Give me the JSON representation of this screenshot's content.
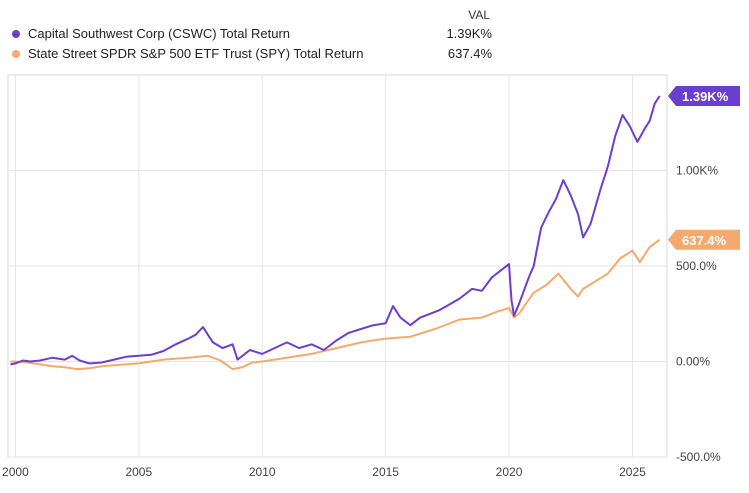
{
  "legend": {
    "header": "VAL",
    "items": [
      {
        "name": "Capital Southwest Corp (CSWC) Total Return",
        "value": "1.39K%",
        "color": "#6a3fd0"
      },
      {
        "name": "State Street SPDR S&P 500 ETF Trust (SPY) Total Return",
        "value": "637.4%",
        "color": "#f6a96e"
      }
    ]
  },
  "chart_data": {
    "type": "line",
    "xlim": [
      1999.7,
      2026.4
    ],
    "ylim": [
      -500,
      1500
    ],
    "grid": true,
    "x_ticks": [
      {
        "v": 2000,
        "label": "2000"
      },
      {
        "v": 2005,
        "label": "2005"
      },
      {
        "v": 2010,
        "label": "2010"
      },
      {
        "v": 2015,
        "label": "2015"
      },
      {
        "v": 2020,
        "label": "2020"
      },
      {
        "v": 2025,
        "label": "2025"
      }
    ],
    "y_ticks": [
      {
        "v": 1000,
        "label": "1.00K%"
      },
      {
        "v": 500,
        "label": "500.0%"
      },
      {
        "v": 0,
        "label": "0.00%"
      },
      {
        "v": -500,
        "label": "-500.0%"
      }
    ],
    "end_labels": [
      {
        "series": 0,
        "label": "1.39K%"
      },
      {
        "series": 1,
        "label": "637.4%"
      }
    ],
    "series": [
      {
        "name": "Capital Southwest Corp (CSWC) Total Return",
        "color": "#6a3fd0",
        "x": [
          1999.8,
          2000.0,
          2000.3,
          2000.6,
          2001.0,
          2001.5,
          2002.0,
          2002.3,
          2002.6,
          2003.0,
          2003.5,
          2004.0,
          2004.5,
          2005.0,
          2005.5,
          2006.0,
          2006.5,
          2007.0,
          2007.3,
          2007.6,
          2008.0,
          2008.4,
          2008.8,
          2009.0,
          2009.2,
          2009.5,
          2010.0,
          2010.5,
          2011.0,
          2011.5,
          2012.0,
          2012.5,
          2013.0,
          2013.5,
          2014.0,
          2014.5,
          2015.0,
          2015.3,
          2015.6,
          2016.0,
          2016.4,
          2016.8,
          2017.2,
          2017.6,
          2018.0,
          2018.5,
          2018.9,
          2019.3,
          2019.7,
          2020.0,
          2020.1,
          2020.2,
          2020.4,
          2020.8,
          2021.0,
          2021.3,
          2021.6,
          2021.9,
          2022.2,
          2022.5,
          2022.8,
          2023.0,
          2023.3,
          2023.7,
          2024.0,
          2024.3,
          2024.6,
          2024.9,
          2025.2,
          2025.5,
          2025.7,
          2025.9,
          2026.1
        ],
        "y": [
          -15,
          -10,
          5,
          0,
          5,
          20,
          10,
          30,
          5,
          -10,
          -5,
          10,
          25,
          30,
          35,
          55,
          90,
          120,
          140,
          180,
          100,
          70,
          90,
          10,
          30,
          60,
          40,
          70,
          100,
          70,
          90,
          60,
          110,
          150,
          170,
          190,
          200,
          290,
          230,
          190,
          230,
          250,
          270,
          300,
          330,
          380,
          370,
          440,
          480,
          510,
          320,
          240,
          300,
          440,
          500,
          700,
          780,
          850,
          950,
          870,
          770,
          650,
          720,
          900,
          1020,
          1180,
          1290,
          1230,
          1150,
          1220,
          1260,
          1350,
          1390
        ]
      },
      {
        "name": "State Street SPDR S&P 500 ETF Trust (SPY) Total Return",
        "color": "#f6a96e",
        "x": [
          1999.8,
          2000.0,
          2000.5,
          2001.0,
          2001.5,
          2002.0,
          2002.5,
          2003.0,
          2003.5,
          2004.0,
          2005.0,
          2006.0,
          2007.0,
          2007.8,
          2008.3,
          2008.8,
          2009.2,
          2009.6,
          2010.0,
          2011.0,
          2012.0,
          2013.0,
          2014.0,
          2015.0,
          2016.0,
          2017.0,
          2018.0,
          2018.9,
          2019.5,
          2020.0,
          2020.2,
          2020.4,
          2021.0,
          2021.5,
          2022.0,
          2022.5,
          2022.8,
          2023.0,
          2023.5,
          2024.0,
          2024.5,
          2025.0,
          2025.3,
          2025.7,
          2026.1
        ],
        "y": [
          0,
          0,
          -5,
          -15,
          -25,
          -30,
          -40,
          -35,
          -25,
          -20,
          -10,
          10,
          20,
          30,
          5,
          -40,
          -30,
          -5,
          0,
          20,
          40,
          70,
          100,
          120,
          130,
          170,
          220,
          230,
          260,
          280,
          230,
          250,
          360,
          400,
          460,
          380,
          340,
          380,
          420,
          460,
          540,
          580,
          520,
          600,
          637.4
        ]
      }
    ]
  }
}
